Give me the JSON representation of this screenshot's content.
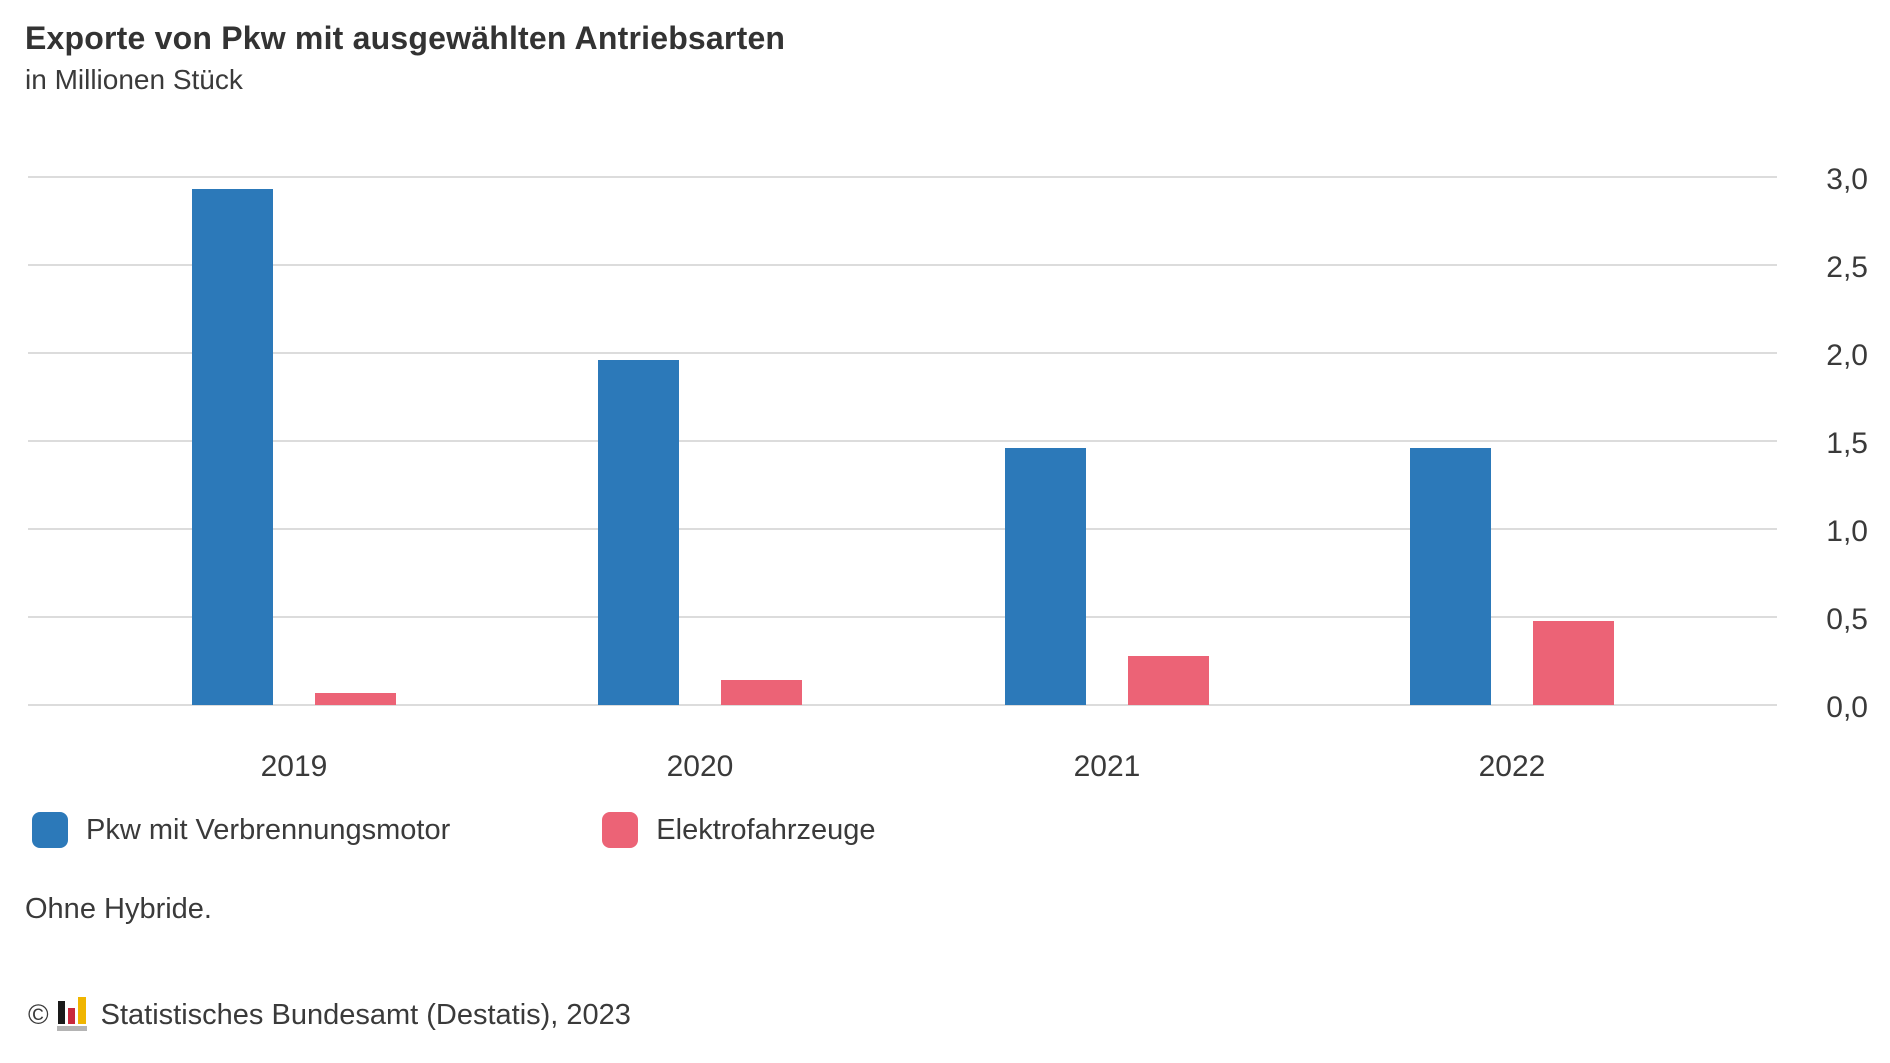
{
  "header": {
    "title": "Exporte von Pkw mit ausgewählten Antriebsarten",
    "subtitle": "in Millionen Stück"
  },
  "chart_data": {
    "type": "bar",
    "title": "Exporte von Pkw mit ausgewählten Antriebsarten",
    "subtitle": "in Millionen Stück",
    "categories": [
      "2019",
      "2020",
      "2021",
      "2022"
    ],
    "series": [
      {
        "name": "Pkw mit Verbrennungsmotor",
        "color": "#2c79b9",
        "values": [
          2.93,
          1.96,
          1.46,
          1.46
        ]
      },
      {
        "name": "Elektrofahrzeuge",
        "color": "#ec6376",
        "values": [
          0.07,
          0.14,
          0.28,
          0.48
        ]
      }
    ],
    "xlabel": "",
    "ylabel": "in Millionen Stück",
    "ylim": [
      0,
      3.0
    ],
    "yticks": [
      {
        "value": 0.0,
        "label": "0,0"
      },
      {
        "value": 0.5,
        "label": "0,5"
      },
      {
        "value": 1.0,
        "label": "1,0"
      },
      {
        "value": 1.5,
        "label": "1,5"
      },
      {
        "value": 2.0,
        "label": "2,0"
      },
      {
        "value": 2.5,
        "label": "2,5"
      },
      {
        "value": 3.0,
        "label": "3,0"
      }
    ],
    "grid": true,
    "gridline_color": "#dcdcdc",
    "legend_position": "bottom",
    "yaxis_side": "right"
  },
  "footnote": "Ohne Hybride.",
  "source": {
    "copyright": "©",
    "logo_icon": "destatis-bar-chart-logo",
    "logo_colors": {
      "black": "#1a1a1a",
      "red": "#c9283c",
      "yellow": "#f0b500",
      "gray": "#b4b4b4"
    },
    "text": "Statistisches Bundesamt (Destatis), 2023"
  }
}
